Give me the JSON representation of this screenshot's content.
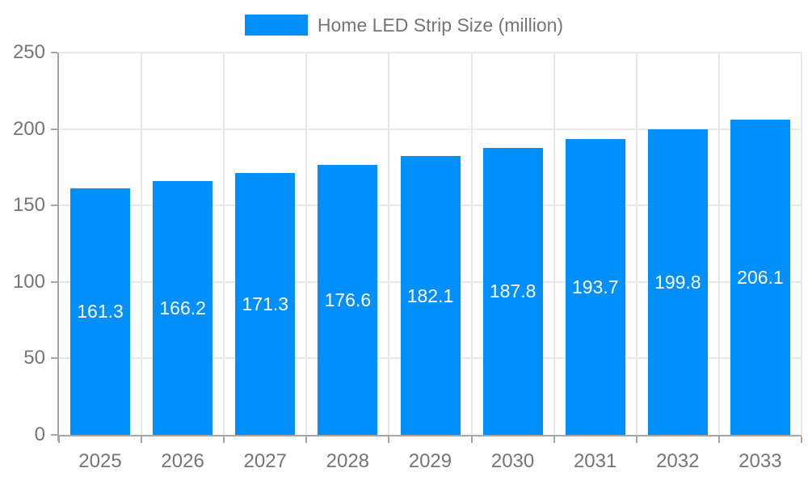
{
  "legend": {
    "title": "Home LED Strip Size (million)"
  },
  "chart_data": {
    "type": "bar",
    "title": "Home LED Strip Size (million)",
    "series_name": "Home LED Strip Size (million)",
    "categories": [
      "2025",
      "2026",
      "2027",
      "2028",
      "2029",
      "2030",
      "2031",
      "2032",
      "2033"
    ],
    "values": [
      161.3,
      166.2,
      171.3,
      176.6,
      182.1,
      187.8,
      193.7,
      199.8,
      206.1
    ],
    "xlabel": "",
    "ylabel": "",
    "ylim": [
      0,
      250
    ],
    "yticks": [
      0,
      50,
      100,
      150,
      200,
      250
    ],
    "legend_position": "top",
    "grid": true,
    "value_labels_position": "center",
    "colors": {
      "bar": "#008FFB",
      "grid": "#e7e7e7",
      "axis": "#a6a6a6",
      "tick": "#a6a6a6",
      "axis_label": "#757575",
      "value_label": "#ffffff",
      "background": "#ffffff"
    }
  }
}
